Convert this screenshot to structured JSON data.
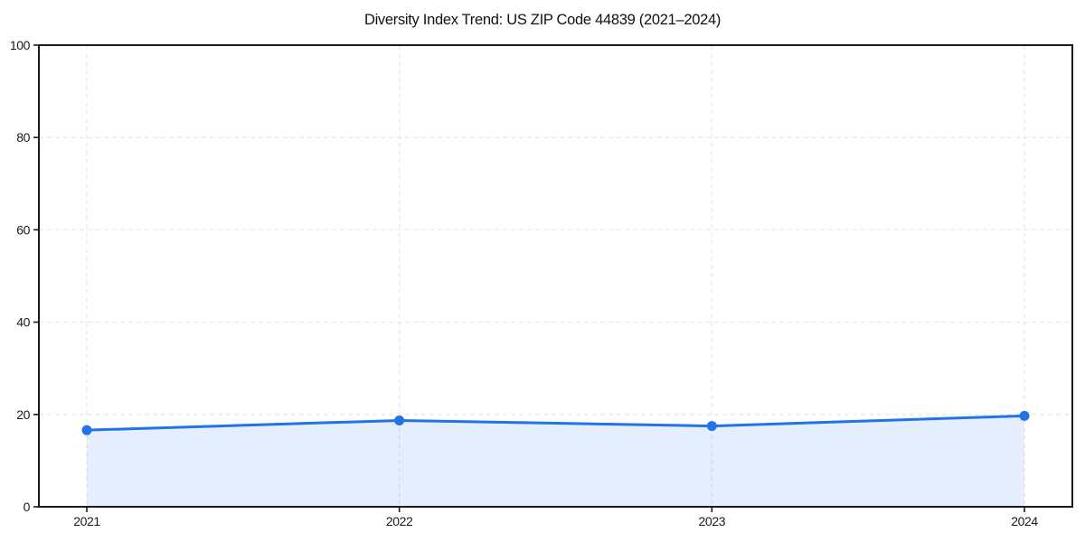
{
  "chart_data": {
    "type": "area",
    "title": "Diversity Index Trend: US ZIP Code 44839 (2021–2024)",
    "xlabel": "",
    "ylabel": "",
    "x": [
      "2021",
      "2022",
      "2023",
      "2024"
    ],
    "series": [
      {
        "name": "Diversity Index",
        "values": [
          16.6,
          18.7,
          17.5,
          19.7
        ]
      }
    ],
    "ylim": [
      0,
      100
    ],
    "yticks": [
      0,
      20,
      40,
      60,
      80,
      100
    ],
    "grid": "dashed-both-axes",
    "legend": "none",
    "marker": "circle",
    "colors": {
      "line": "#2272e8",
      "marker": "#2272e8",
      "fill": "rgba(34,114,232,0.12)",
      "grid": "#e9e9e9",
      "spine": "#1a1a1a",
      "tick_text": "#1a1a1a",
      "title_text": "#111111",
      "background": "#ffffff"
    }
  }
}
